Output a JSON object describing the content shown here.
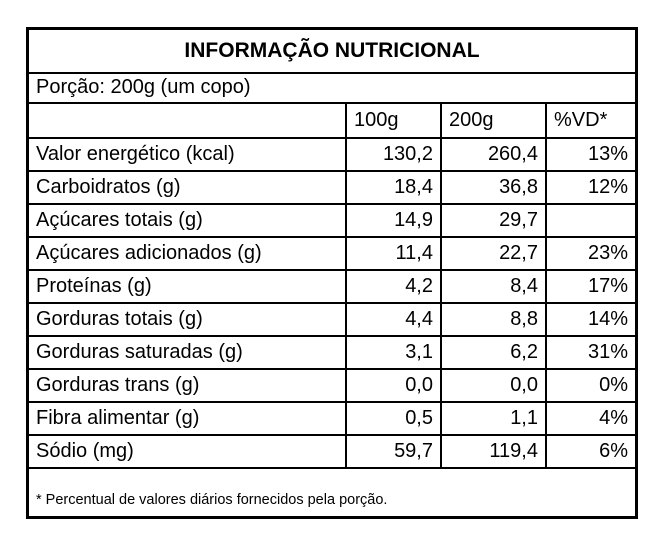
{
  "title": "INFORMAÇÃO NUTRICIONAL",
  "portion": "Porção: 200g (um copo)",
  "columns": [
    "",
    "100g",
    "200g",
    "%VD*"
  ],
  "rows": [
    {
      "name": "Valor energético (kcal)",
      "v100": "130,2",
      "v200": "260,4",
      "vd": "13%"
    },
    {
      "name": "Carboidratos  (g)",
      "v100": "18,4",
      "v200": "36,8",
      "vd": "12%"
    },
    {
      "name": "Açúcares totais  (g)",
      "v100": "14,9",
      "v200": "29,7",
      "vd": ""
    },
    {
      "name": "Açúcares adicionados  (g)",
      "v100": "11,4",
      "v200": "22,7",
      "vd": "23%"
    },
    {
      "name": "Proteínas   (g)",
      "v100": "4,2",
      "v200": "8,4",
      "vd": "17%"
    },
    {
      "name": "Gorduras totais (g)",
      "v100": "4,4",
      "v200": "8,8",
      "vd": "14%"
    },
    {
      "name": "Gorduras saturadas (g)",
      "v100": "3,1",
      "v200": "6,2",
      "vd": "31%"
    },
    {
      "name": "Gorduras trans (g)",
      "v100": "0,0",
      "v200": "0,0",
      "vd": "0%"
    },
    {
      "name": "Fibra  alimentar (g)",
      "v100": "0,5",
      "v200": "1,1",
      "vd": "4%"
    },
    {
      "name": "Sódio (mg)",
      "v100": "59,7",
      "v200": "119,4",
      "vd": "6%"
    }
  ],
  "footnote": "* Percentual de valores diários fornecidos pela porção."
}
